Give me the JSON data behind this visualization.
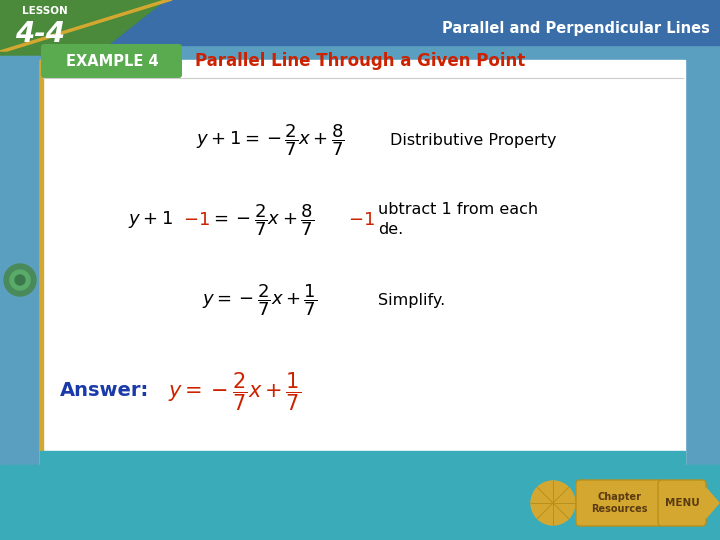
{
  "bg_outer": "#5b9fc0",
  "bg_white": "#ffffff",
  "bg_top_bar": "#3a6ea8",
  "green_band": "#4a8a3a",
  "green_example_box": "#5aaa50",
  "teal_bottom": "#3aabb8",
  "example_text": "EXAMPLE 4",
  "title_text": "Parallel Line Through a Given Point",
  "title_color": "#cc2200",
  "lesson_label": "LESSON",
  "lesson_number": "4-4",
  "top_right_text": "Parallel and Perpendicular Lines",
  "line1_label": "Distributive Property",
  "line2_label_1": "ubtract 1 from each",
  "line2_label_2": "de.",
  "line3_label": "Simplify.",
  "answer_label": "Answer:",
  "answer_color": "#1a3aaa",
  "red_color": "#cc2200",
  "black_color": "#000000",
  "gold_color": "#d4a830"
}
